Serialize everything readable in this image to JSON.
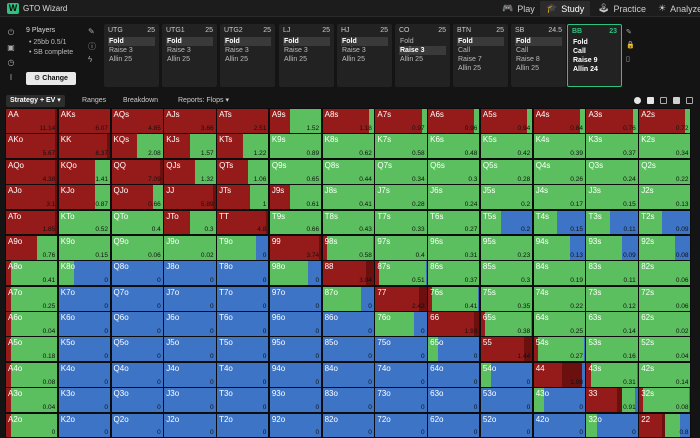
{
  "app": {
    "title": "GTO Wizard",
    "logo_letter": "W"
  },
  "top_nav": [
    {
      "id": "play",
      "label": "Play",
      "icon": "controller-icon"
    },
    {
      "id": "study",
      "label": "Study",
      "icon": "graduation-cap-icon",
      "active": true
    },
    {
      "id": "practice",
      "label": "Practice",
      "icon": "gamepad-icon"
    },
    {
      "id": "analyze",
      "label": "Analyze",
      "icon": "bulb-icon"
    }
  ],
  "left_panel": {
    "players": "9 Players",
    "stack": "• 25bb 0.5/1",
    "sb_status": "• SB complete",
    "change_label": "Change"
  },
  "positions": [
    {
      "name": "UTG",
      "stack": "25",
      "actions": [
        "Fold",
        "Raise 3",
        "Allin 25"
      ],
      "selected": 0
    },
    {
      "name": "UTG1",
      "stack": "25",
      "actions": [
        "Fold",
        "Raise 3",
        "Allin 25"
      ],
      "selected": 0
    },
    {
      "name": "UTG2",
      "stack": "25",
      "actions": [
        "Fold",
        "Raise 3",
        "Allin 25"
      ],
      "selected": 0
    },
    {
      "name": "LJ",
      "stack": "25",
      "actions": [
        "Fold",
        "Raise 3",
        "Allin 25"
      ],
      "selected": 0
    },
    {
      "name": "HJ",
      "stack": "25",
      "actions": [
        "Fold",
        "Raise 3",
        "Allin 25"
      ],
      "selected": 0
    },
    {
      "name": "CO",
      "stack": "25",
      "actions": [
        "Fold",
        "Raise 3",
        "Allin 25"
      ],
      "selected": 1
    },
    {
      "name": "BTN",
      "stack": "25",
      "actions": [
        "Fold",
        "Call",
        "Raise 7",
        "Allin 25"
      ],
      "selected": 0
    },
    {
      "name": "SB",
      "stack": "24.5",
      "actions": [
        "Fold",
        "Call",
        "Raise 8",
        "Allin 25"
      ],
      "selected": 0
    },
    {
      "name": "BB",
      "stack": "23",
      "actions": [
        "Fold",
        "Call",
        "Raise 9",
        "Allin 24"
      ],
      "selected": -1,
      "active": true
    }
  ],
  "tabs": {
    "strategy": "Strategy + EV ▾",
    "ranges": "Ranges",
    "breakdown": "Breakdown",
    "reports": "Reports: Flops ▾"
  },
  "colors": {
    "fold": "#3d74c6",
    "call": "#5cbf5f",
    "raise": "#951b1b",
    "allin": "#6b0f0f",
    "accent": "#2ec27e"
  },
  "grid": {
    "ranks": [
      "A",
      "K",
      "Q",
      "J",
      "T",
      "9",
      "8",
      "7",
      "6",
      "5",
      "4",
      "3",
      "2"
    ],
    "ev": [
      [
        "11.14",
        "6.07",
        "4.85",
        "3.66",
        "2.51",
        "1.52",
        "1.18",
        "0.97",
        "0.96",
        "0.94",
        "0.84",
        "0.76",
        "0.72"
      ],
      [
        "5.67",
        "8.37",
        "2.08",
        "1.57",
        "1.22",
        "0.89",
        "0.62",
        "0.58",
        "0.48",
        "0.42",
        "0.39",
        "0.37",
        "0.34"
      ],
      [
        "4.38",
        "1.41",
        "7.09",
        "1.32",
        "1.06",
        "0.65",
        "0.44",
        "0.34",
        "0.3",
        "0.28",
        "0.26",
        "0.24",
        "0.22"
      ],
      [
        "3.1",
        "0.87",
        "0.66",
        "5.89",
        "1",
        "0.61",
        "0.41",
        "0.28",
        "0.24",
        "0.2",
        "0.17",
        "0.15",
        "0.13"
      ],
      [
        "1.85",
        "0.52",
        "0.4",
        "0.3",
        "4.8",
        "0.66",
        "0.43",
        "0.33",
        "0.27",
        "0.2",
        "0.15",
        "0.11",
        "0.09"
      ],
      [
        "0.76",
        "0.15",
        "0.06",
        "0.02",
        "0",
        "3.74",
        "0.58",
        "0.4",
        "0.31",
        "0.23",
        "0.13",
        "0.09",
        "0.08"
      ],
      [
        "0.41",
        "0",
        "0",
        "0",
        "0",
        "0",
        "3.04",
        "0.51",
        "0.37",
        "0.3",
        "0.19",
        "0.11",
        "0.06"
      ],
      [
        "0.25",
        "0",
        "0",
        "0",
        "0",
        "0",
        "0",
        "2.42",
        "0.41",
        "0.35",
        "0.22",
        "0.12",
        "0.06"
      ],
      [
        "0.04",
        "0",
        "0",
        "0",
        "0",
        "0",
        "0",
        "0",
        "1.93",
        "0.38",
        "0.25",
        "0.14",
        "0.02"
      ],
      [
        "0.18",
        "0",
        "0",
        "0",
        "0",
        "0",
        "0",
        "0",
        "0",
        "1.44",
        "0.27",
        "0.16",
        "0.04"
      ],
      [
        "0.08",
        "0",
        "0",
        "0",
        "0",
        "0",
        "0",
        "0",
        "0",
        "0",
        "1.08",
        "0.31",
        "0.14"
      ],
      [
        "0.04",
        "0",
        "0",
        "0",
        "0",
        "0",
        "0",
        "0",
        "0",
        "0",
        "0",
        "0.91",
        "0.08"
      ],
      [
        "0",
        "0",
        "0",
        "0",
        "0",
        "0",
        "0",
        "0",
        "0",
        "0",
        "0",
        "0",
        "0.8"
      ]
    ]
  }
}
